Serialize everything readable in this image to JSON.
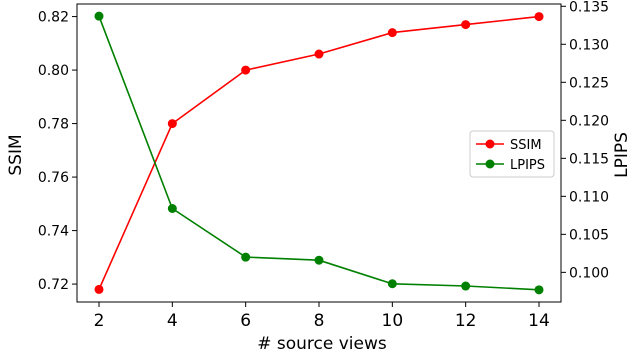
{
  "chart_data": {
    "type": "line",
    "title": "",
    "xlabel": "# source views",
    "ylabel_left": "SSIM",
    "ylabel_right": "LPIPS",
    "x": [
      2,
      4,
      6,
      8,
      10,
      12,
      14
    ],
    "xticks": [
      "2",
      "4",
      "6",
      "8",
      "10",
      "12",
      "14"
    ],
    "xlim": [
      1.4,
      14.6
    ],
    "ylim_left": [
      0.7133,
      0.8247
    ],
    "ylim_right": [
      0.0961,
      0.1353
    ],
    "yticks_left": [
      "0.72",
      "0.74",
      "0.76",
      "0.78",
      "0.80",
      "0.82"
    ],
    "yticks_right": [
      "0.100",
      "0.105",
      "0.110",
      "0.115",
      "0.120",
      "0.125",
      "0.130",
      "0.135"
    ],
    "grid": false,
    "legend_position": "center-right",
    "series": [
      {
        "name": "SSIM",
        "axis": "left",
        "color": "#ff0000",
        "values": [
          0.718,
          0.78,
          0.8,
          0.806,
          0.814,
          0.817,
          0.82
        ]
      },
      {
        "name": "LPIPS",
        "axis": "right",
        "color": "#008000",
        "values": [
          0.1337,
          0.1084,
          0.102,
          0.1016,
          0.0985,
          0.0982,
          0.0977
        ]
      }
    ]
  }
}
